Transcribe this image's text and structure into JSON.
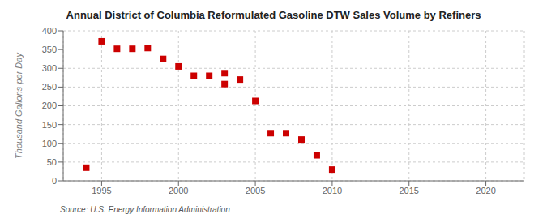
{
  "chart_data": {
    "type": "scatter",
    "title": "Annual District of Columbia Reformulated Gasoline DTW Sales Volume by Refiners",
    "ylabel": "Thousand Gallons per Day",
    "annotations": [
      "Source: U.S. Energy Information Administration"
    ],
    "color": "#cc0000",
    "marker": "square",
    "grid": true,
    "xlim": [
      1992.5,
      2022.5
    ],
    "ylim": [
      0,
      400
    ],
    "xticks": [
      1995,
      2000,
      2005,
      2010,
      2015,
      2020
    ],
    "yticks": [
      0,
      50,
      100,
      150,
      200,
      250,
      300,
      350,
      400
    ],
    "x": [
      1994,
      1995,
      1996,
      1997,
      1998,
      1999,
      2000,
      2001,
      2002,
      2003,
      2003,
      2004,
      2005,
      2006,
      2007,
      2008,
      2009,
      2010
    ],
    "values": [
      35,
      372,
      352,
      352,
      354,
      325,
      305,
      280,
      280,
      258,
      287,
      270,
      213,
      127,
      127,
      110,
      68,
      30
    ]
  }
}
